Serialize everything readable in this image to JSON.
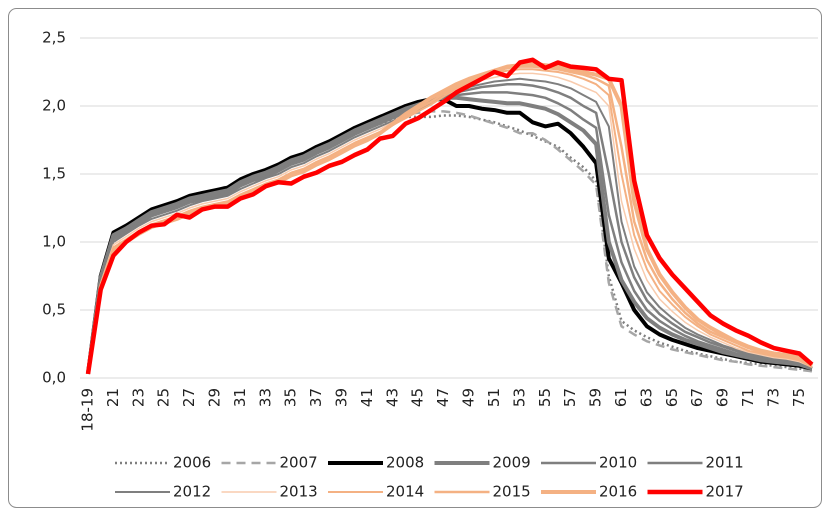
{
  "chart_data": {
    "type": "line",
    "categories": [
      "18-19",
      null,
      "21",
      null,
      "23",
      null,
      "25",
      null,
      "27",
      null,
      "29",
      null,
      "31",
      null,
      "33",
      null,
      "35",
      null,
      "37",
      null,
      "39",
      null,
      "41",
      null,
      "43",
      null,
      "45",
      null,
      "47",
      null,
      "49",
      null,
      "51",
      null,
      "53",
      null,
      "55",
      null,
      "57",
      null,
      "59",
      null,
      "61",
      null,
      "63",
      null,
      "65",
      null,
      "67",
      null,
      "69",
      null,
      "71",
      null,
      "73",
      null,
      "75",
      null
    ],
    "ylim": [
      0,
      2.5
    ],
    "yticks": [
      {
        "value": 0,
        "label": "0,0"
      },
      {
        "value": 0.5,
        "label": "0,5"
      },
      {
        "value": 1,
        "label": "1,0"
      },
      {
        "value": 1.5,
        "label": "1,5"
      },
      {
        "value": 2,
        "label": "2,0"
      },
      {
        "value": 2.5,
        "label": "2,5"
      }
    ],
    "grid": true,
    "legend": "bottom",
    "series": [
      {
        "name": "2006",
        "color": "#7f7f7f",
        "width": 2.5,
        "dash": "dotted",
        "values": [
          0.03,
          0.72,
          1.03,
          1.1,
          1.16,
          1.22,
          1.25,
          1.28,
          1.32,
          1.35,
          1.37,
          1.4,
          1.44,
          1.48,
          1.52,
          1.56,
          1.6,
          1.64,
          1.68,
          1.72,
          1.76,
          1.8,
          1.84,
          1.87,
          1.9,
          1.92,
          1.92,
          1.92,
          1.93,
          1.93,
          1.92,
          1.9,
          1.88,
          1.85,
          1.82,
          1.78,
          1.74,
          1.7,
          1.62,
          1.55,
          1.45,
          0.75,
          0.42,
          0.35,
          0.3,
          0.26,
          0.23,
          0.2,
          0.18,
          0.16,
          0.14,
          0.12,
          0.11,
          0.1,
          0.09,
          0.08,
          0.07,
          0.05
        ]
      },
      {
        "name": "2007",
        "color": "#a6a6a6",
        "width": 2.5,
        "dash": "dashed",
        "values": [
          0.03,
          0.73,
          1.05,
          1.11,
          1.17,
          1.23,
          1.26,
          1.29,
          1.33,
          1.35,
          1.38,
          1.41,
          1.45,
          1.49,
          1.53,
          1.57,
          1.61,
          1.65,
          1.69,
          1.73,
          1.78,
          1.82,
          1.86,
          1.89,
          1.92,
          1.94,
          1.95,
          1.96,
          1.96,
          1.95,
          1.93,
          1.9,
          1.87,
          1.84,
          1.8,
          1.8,
          1.75,
          1.68,
          1.6,
          1.52,
          1.42,
          0.7,
          0.38,
          0.32,
          0.27,
          0.24,
          0.21,
          0.19,
          0.17,
          0.15,
          0.13,
          0.12,
          0.1,
          0.09,
          0.08,
          0.07,
          0.06,
          0.05
        ]
      },
      {
        "name": "2008",
        "color": "#000000",
        "width": 4,
        "values": [
          0.03,
          0.75,
          1.07,
          1.12,
          1.18,
          1.24,
          1.27,
          1.3,
          1.34,
          1.36,
          1.38,
          1.4,
          1.46,
          1.5,
          1.53,
          1.57,
          1.62,
          1.65,
          1.7,
          1.74,
          1.79,
          1.84,
          1.88,
          1.92,
          1.96,
          2.0,
          2.03,
          2.05,
          2.05,
          2.0,
          2.0,
          1.98,
          1.97,
          1.95,
          1.95,
          1.88,
          1.85,
          1.87,
          1.8,
          1.7,
          1.58,
          0.88,
          0.7,
          0.5,
          0.38,
          0.32,
          0.28,
          0.25,
          0.22,
          0.2,
          0.18,
          0.16,
          0.14,
          0.12,
          0.11,
          0.1,
          0.09,
          0.07
        ]
      },
      {
        "name": "2009",
        "color": "#7f7f7f",
        "width": 4,
        "values": [
          0.03,
          0.74,
          1.05,
          1.1,
          1.16,
          1.22,
          1.25,
          1.28,
          1.32,
          1.34,
          1.36,
          1.38,
          1.44,
          1.48,
          1.51,
          1.55,
          1.6,
          1.63,
          1.68,
          1.72,
          1.77,
          1.82,
          1.86,
          1.9,
          1.94,
          1.98,
          2.01,
          2.04,
          2.06,
          2.06,
          2.05,
          2.04,
          2.03,
          2.02,
          2.02,
          2.0,
          1.98,
          1.94,
          1.88,
          1.82,
          1.72,
          1.0,
          0.72,
          0.56,
          0.44,
          0.37,
          0.32,
          0.28,
          0.25,
          0.22,
          0.19,
          0.17,
          0.15,
          0.13,
          0.12,
          0.11,
          0.1,
          0.07
        ]
      },
      {
        "name": "2010",
        "color": "#7f7f7f",
        "width": 2.5,
        "values": [
          0.03,
          0.73,
          1.03,
          1.08,
          1.14,
          1.2,
          1.23,
          1.26,
          1.3,
          1.32,
          1.34,
          1.36,
          1.42,
          1.46,
          1.49,
          1.53,
          1.58,
          1.61,
          1.66,
          1.7,
          1.75,
          1.8,
          1.84,
          1.88,
          1.92,
          1.96,
          1.99,
          2.03,
          2.06,
          2.08,
          2.09,
          2.1,
          2.1,
          2.1,
          2.09,
          2.08,
          2.06,
          2.02,
          1.97,
          1.9,
          1.84,
          1.2,
          0.85,
          0.64,
          0.5,
          0.42,
          0.36,
          0.31,
          0.27,
          0.24,
          0.21,
          0.18,
          0.16,
          0.14,
          0.13,
          0.12,
          0.1,
          0.07
        ]
      },
      {
        "name": "2011",
        "color": "#7f7f7f",
        "width": 2.5,
        "values": [
          0.03,
          0.72,
          1.02,
          1.07,
          1.13,
          1.19,
          1.22,
          1.25,
          1.29,
          1.31,
          1.33,
          1.35,
          1.41,
          1.45,
          1.48,
          1.52,
          1.57,
          1.6,
          1.65,
          1.69,
          1.74,
          1.79,
          1.83,
          1.87,
          1.91,
          1.95,
          1.98,
          2.03,
          2.07,
          2.1,
          2.12,
          2.14,
          2.15,
          2.16,
          2.16,
          2.15,
          2.13,
          2.1,
          2.06,
          2.0,
          1.95,
          1.5,
          1.0,
          0.74,
          0.57,
          0.47,
          0.4,
          0.34,
          0.3,
          0.26,
          0.23,
          0.2,
          0.17,
          0.15,
          0.14,
          0.12,
          0.1,
          0.07
        ]
      },
      {
        "name": "2012",
        "color": "#7f7f7f",
        "width": 2,
        "values": [
          0.03,
          0.71,
          1.0,
          1.06,
          1.12,
          1.17,
          1.2,
          1.23,
          1.27,
          1.3,
          1.32,
          1.34,
          1.39,
          1.43,
          1.47,
          1.5,
          1.55,
          1.58,
          1.63,
          1.67,
          1.72,
          1.77,
          1.81,
          1.85,
          1.89,
          1.93,
          1.97,
          2.02,
          2.07,
          2.11,
          2.14,
          2.16,
          2.18,
          2.19,
          2.2,
          2.19,
          2.18,
          2.16,
          2.13,
          2.08,
          2.03,
          1.85,
          1.15,
          0.82,
          0.63,
          0.52,
          0.44,
          0.37,
          0.32,
          0.28,
          0.24,
          0.21,
          0.18,
          0.16,
          0.14,
          0.13,
          0.11,
          0.07
        ]
      },
      {
        "name": "2013",
        "color": "#f8cbad",
        "width": 1.5,
        "values": [
          0.03,
          0.7,
          0.98,
          1.04,
          1.1,
          1.15,
          1.18,
          1.21,
          1.25,
          1.28,
          1.3,
          1.32,
          1.37,
          1.41,
          1.45,
          1.48,
          1.53,
          1.56,
          1.61,
          1.65,
          1.7,
          1.75,
          1.79,
          1.83,
          1.88,
          1.92,
          1.96,
          2.01,
          2.07,
          2.12,
          2.16,
          2.19,
          2.21,
          2.23,
          2.24,
          2.24,
          2.23,
          2.21,
          2.18,
          2.14,
          2.1,
          2.0,
          1.3,
          0.95,
          0.72,
          0.58,
          0.49,
          0.41,
          0.35,
          0.3,
          0.26,
          0.22,
          0.19,
          0.17,
          0.15,
          0.14,
          0.12,
          0.08
        ]
      },
      {
        "name": "2014",
        "color": "#f4b183",
        "width": 2,
        "values": [
          0.03,
          0.69,
          0.96,
          1.02,
          1.08,
          1.13,
          1.16,
          1.19,
          1.23,
          1.26,
          1.28,
          1.3,
          1.35,
          1.39,
          1.43,
          1.46,
          1.51,
          1.54,
          1.59,
          1.63,
          1.68,
          1.73,
          1.77,
          1.81,
          1.86,
          1.91,
          1.96,
          2.01,
          2.07,
          2.13,
          2.17,
          2.21,
          2.24,
          2.26,
          2.27,
          2.27,
          2.26,
          2.25,
          2.23,
          2.2,
          2.16,
          2.08,
          1.5,
          1.05,
          0.8,
          0.64,
          0.54,
          0.45,
          0.38,
          0.32,
          0.28,
          0.24,
          0.2,
          0.18,
          0.16,
          0.15,
          0.13,
          0.08
        ]
      },
      {
        "name": "2015",
        "color": "#f4b183",
        "width": 2.5,
        "values": [
          0.03,
          0.68,
          0.94,
          1.01,
          1.07,
          1.12,
          1.15,
          1.18,
          1.22,
          1.25,
          1.27,
          1.29,
          1.34,
          1.38,
          1.42,
          1.45,
          1.5,
          1.53,
          1.58,
          1.62,
          1.67,
          1.72,
          1.76,
          1.8,
          1.86,
          1.92,
          1.98,
          2.03,
          2.09,
          2.14,
          2.18,
          2.22,
          2.25,
          2.28,
          2.29,
          2.29,
          2.28,
          2.27,
          2.25,
          2.23,
          2.2,
          2.15,
          1.7,
          1.15,
          0.87,
          0.7,
          0.58,
          0.48,
          0.4,
          0.34,
          0.3,
          0.26,
          0.22,
          0.19,
          0.17,
          0.16,
          0.14,
          0.09
        ]
      },
      {
        "name": "2016",
        "color": "#f4b183",
        "width": 4,
        "values": [
          0.03,
          0.67,
          0.92,
          1.0,
          1.06,
          1.11,
          1.14,
          1.17,
          1.21,
          1.24,
          1.26,
          1.28,
          1.33,
          1.37,
          1.41,
          1.44,
          1.49,
          1.52,
          1.57,
          1.61,
          1.66,
          1.71,
          1.75,
          1.8,
          1.87,
          1.94,
          2.0,
          2.06,
          2.11,
          2.16,
          2.2,
          2.23,
          2.26,
          2.29,
          2.3,
          2.31,
          2.3,
          2.29,
          2.27,
          2.25,
          2.23,
          2.2,
          2.0,
          1.3,
          0.95,
          0.76,
          0.63,
          0.52,
          0.43,
          0.37,
          0.32,
          0.27,
          0.23,
          0.2,
          0.18,
          0.17,
          0.15,
          0.09
        ]
      },
      {
        "name": "2017",
        "color": "#ff0000",
        "width": 4.5,
        "values": [
          0.03,
          0.65,
          0.9,
          1.0,
          1.07,
          1.12,
          1.13,
          1.2,
          1.18,
          1.24,
          1.26,
          1.26,
          1.32,
          1.35,
          1.41,
          1.44,
          1.43,
          1.48,
          1.51,
          1.56,
          1.59,
          1.64,
          1.68,
          1.76,
          1.78,
          1.87,
          1.91,
          1.97,
          2.03,
          2.1,
          2.15,
          2.2,
          2.25,
          2.22,
          2.32,
          2.34,
          2.28,
          2.32,
          2.29,
          2.28,
          2.27,
          2.2,
          2.19,
          1.45,
          1.05,
          0.88,
          0.76,
          0.66,
          0.56,
          0.46,
          0.4,
          0.35,
          0.31,
          0.26,
          0.22,
          0.2,
          0.18,
          0.1
        ]
      }
    ]
  }
}
